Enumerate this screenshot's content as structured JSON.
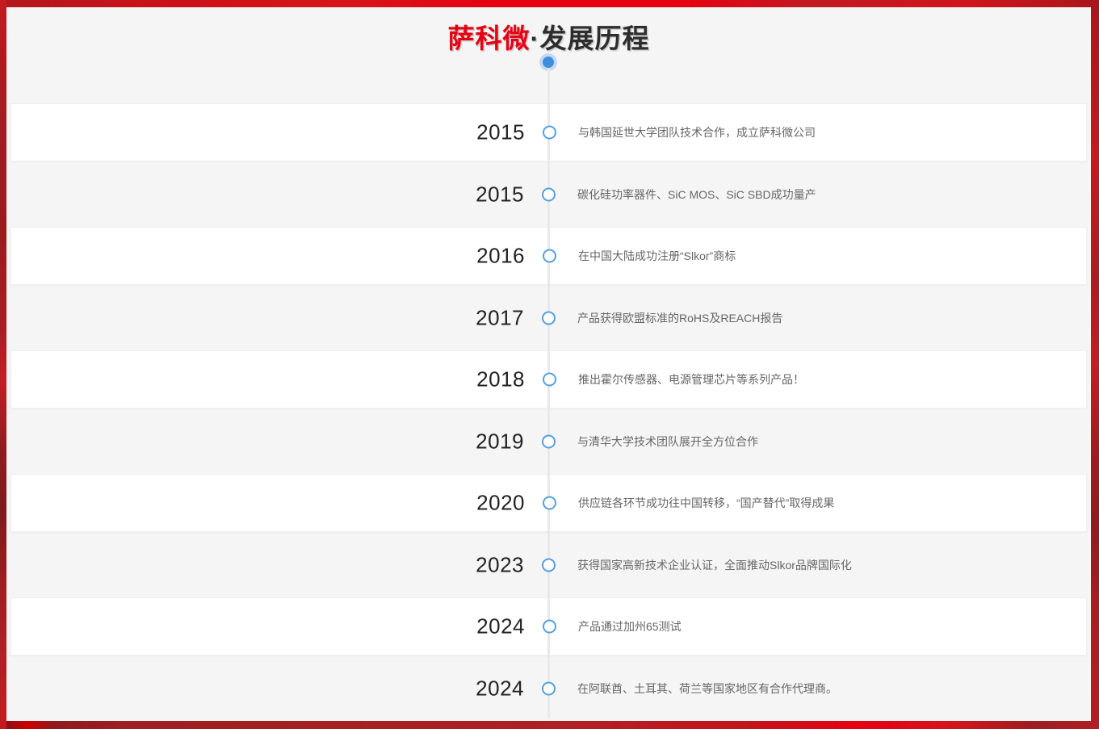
{
  "header": {
    "title_brand": "萨科微",
    "title_rest": "·发展历程"
  },
  "timeline": {
    "items": [
      {
        "year": "2015",
        "text": "与韩国延世大学团队技术合作，成立萨科微公司"
      },
      {
        "year": "2015",
        "text": "碳化硅功率器件、SiC MOS、SiC SBD成功量产"
      },
      {
        "year": "2016",
        "text": "在中国大陆成功注册“Slkor”商标"
      },
      {
        "year": "2017",
        "text": "产品获得欧盟标准的RoHS及REACH报告"
      },
      {
        "year": "2018",
        "text": "推出霍尔传感器、电源管理芯片等系列产品！"
      },
      {
        "year": "2019",
        "text": "与清华大学技术团队展开全方位合作"
      },
      {
        "year": "2020",
        "text": "供应链各环节成功往中国转移，“国产替代”取得成果"
      },
      {
        "year": "2023",
        "text": "获得国家高新技术企业认证，全面推动Slkor品牌国际化"
      },
      {
        "year": "2024",
        "text": "产品通过加州65测试"
      },
      {
        "year": "2024",
        "text": "在阿联酋、土耳其、荷兰等国家地区有合作代理商。"
      }
    ]
  },
  "colors": {
    "accent_red": "#e60012",
    "dot_blue": "#3f8fde",
    "halo_blue": "#c7d8f2",
    "node_blue": "#55a0e0",
    "page_bg": "#f5f5f6",
    "row_white": "#ffffff"
  },
  "icons": {
    "timeline_start_dot": "filled-circle",
    "timeline_node": "open-circle"
  }
}
